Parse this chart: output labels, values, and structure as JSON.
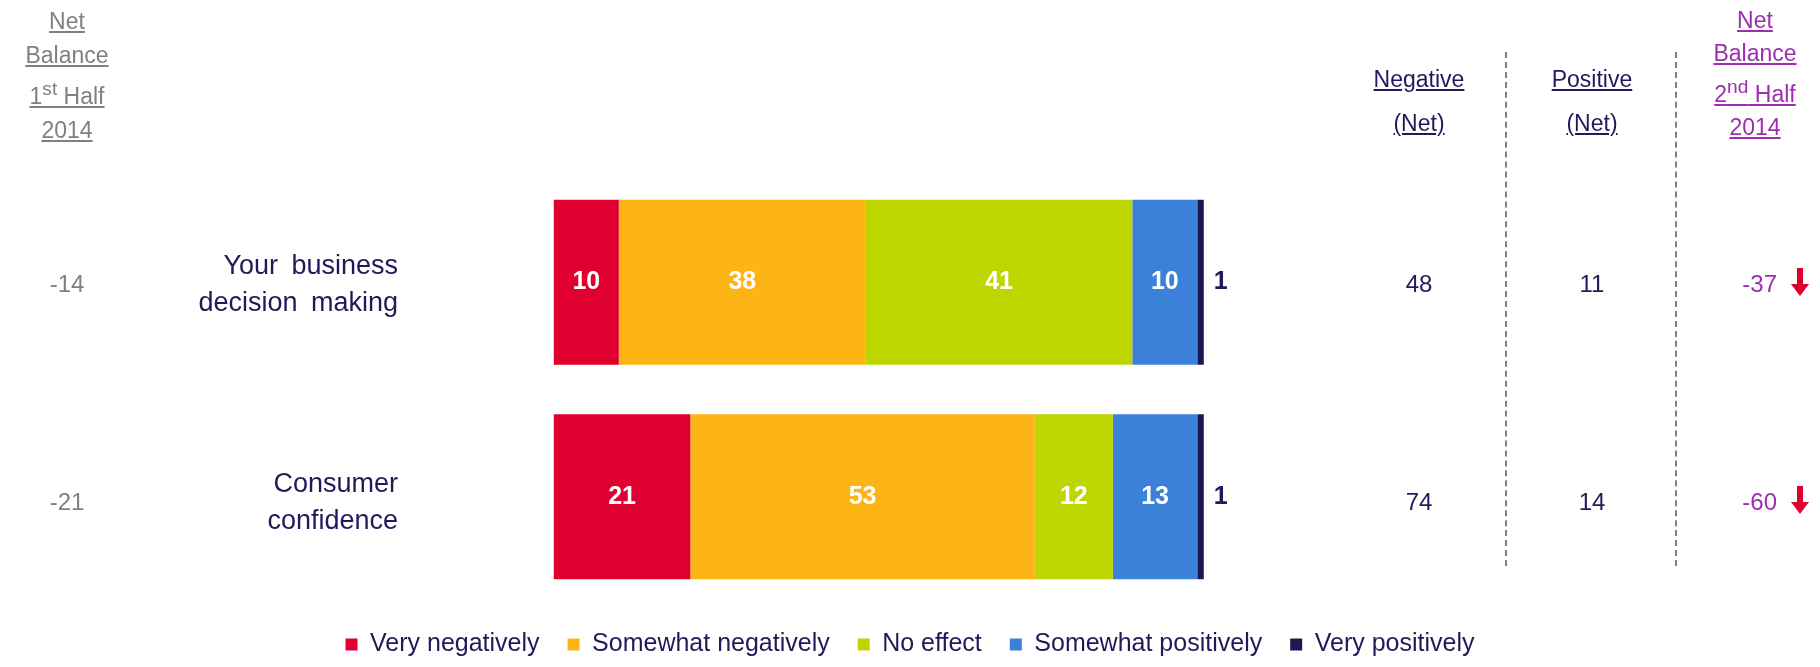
{
  "chart_data": {
    "type": "bar",
    "orientation": "horizontal",
    "stacked": true,
    "data_labels": true,
    "legend": "bottom",
    "categories": [
      "Your business decision making",
      "Consumer confidence"
    ],
    "series": [
      {
        "name": "Very negatively",
        "color": "#e0002f",
        "values": [
          10,
          21
        ]
      },
      {
        "name": "Somewhat negatively",
        "color": "#fdb515",
        "values": [
          38,
          53
        ]
      },
      {
        "name": "No effect",
        "color": "#bed600",
        "values": [
          41,
          12
        ]
      },
      {
        "name": "Somewhat positively",
        "color": "#3b80d9",
        "values": [
          10,
          13
        ]
      },
      {
        "name": "Very positively",
        "color": "#1c1850",
        "values": [
          1,
          1
        ]
      }
    ],
    "annotations": [
      "Net Balance 1$^{st}$ Half 2014",
      "Negative (Net)",
      "Positive (Net)",
      "Net Balance 2$^{nd}$ Half 2014",
      "-14",
      "48",
      "11",
      "-37",
      "-21",
      "74",
      "14",
      "-60"
    ]
  }
}
